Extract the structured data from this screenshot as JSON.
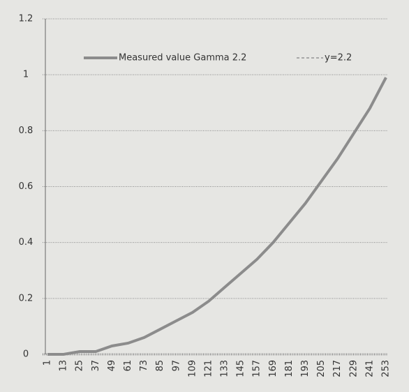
{
  "chart_data": {
    "type": "line",
    "categories": [
      "1",
      "13",
      "25",
      "37",
      "49",
      "61",
      "73",
      "85",
      "97",
      "109",
      "121",
      "133",
      "145",
      "157",
      "169",
      "181",
      "193",
      "205",
      "217",
      "229",
      "241",
      "253"
    ],
    "series": [
      {
        "name": "Measured value Gamma 2.2",
        "color": "#8c8c8c",
        "dash": false,
        "values": [
          0,
          0,
          0.01,
          0.01,
          0.03,
          0.04,
          0.06,
          0.09,
          0.12,
          0.15,
          0.19,
          0.24,
          0.29,
          0.34,
          0.4,
          0.47,
          0.54,
          0.62,
          0.7,
          0.79,
          0.88,
          0.99
        ]
      },
      {
        "name": "y=2.2",
        "color": "#a8a8a8",
        "dash": true,
        "values": [
          0,
          0,
          0.01,
          0.01,
          0.03,
          0.04,
          0.06,
          0.09,
          0.12,
          0.15,
          0.19,
          0.24,
          0.29,
          0.34,
          0.4,
          0.47,
          0.54,
          0.62,
          0.7,
          0.79,
          0.88,
          0.99
        ]
      }
    ],
    "ylim": [
      0,
      1.2
    ],
    "yticks": [
      0,
      0.2,
      0.4,
      0.6,
      0.8,
      1,
      1.2
    ],
    "grid": true,
    "legend": "top"
  }
}
